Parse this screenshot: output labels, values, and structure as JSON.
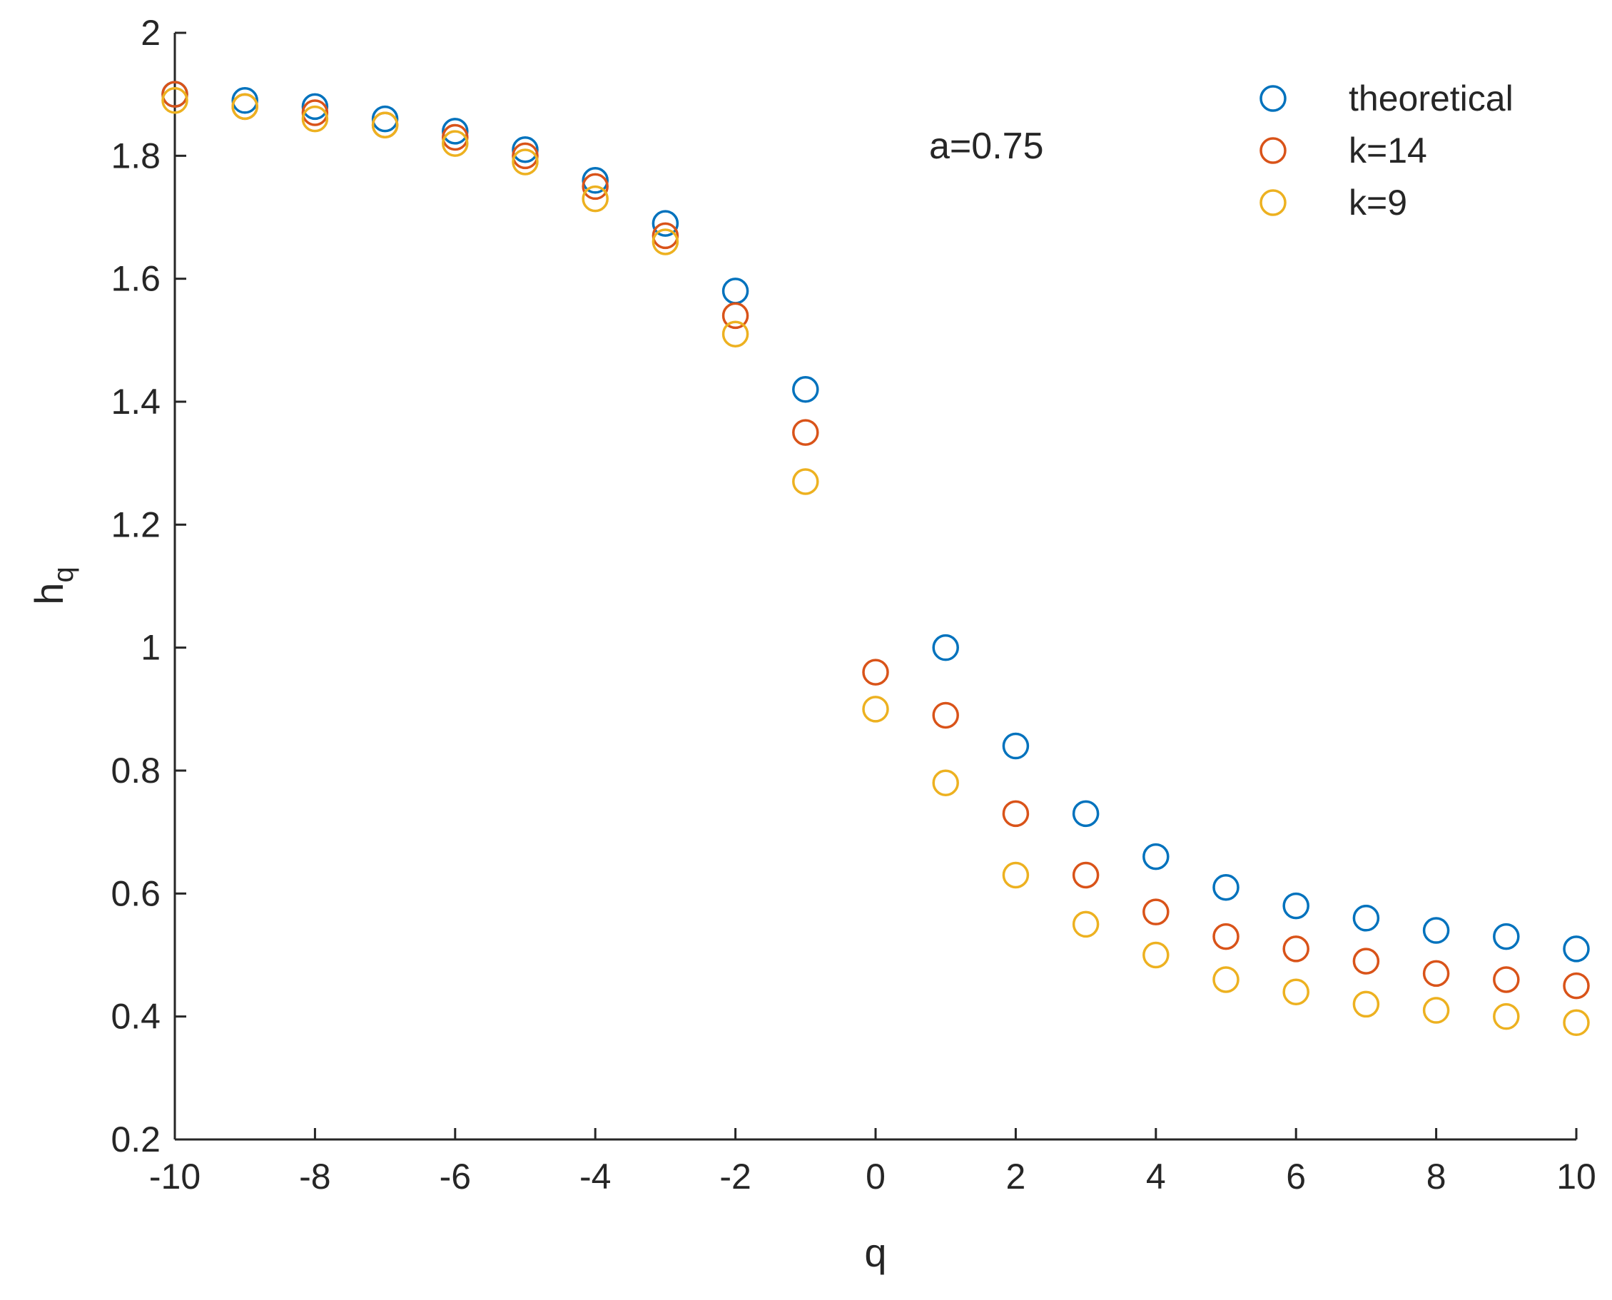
{
  "chart_data": {
    "type": "scatter",
    "title": "",
    "xlabel": "q",
    "ylabel": "h",
    "ylabel_subscript": "q",
    "xlim": [
      -10,
      10
    ],
    "ylim": [
      0.2,
      2
    ],
    "xticks": [
      -10,
      -8,
      -6,
      -4,
      -2,
      0,
      2,
      4,
      6,
      8,
      10
    ],
    "yticks": [
      0.2,
      0.4,
      0.6,
      0.8,
      1,
      1.2,
      1.4,
      1.6,
      1.8,
      2
    ],
    "xtick_labels": [
      "-10",
      "-8",
      "-6",
      "-4",
      "-2",
      "0",
      "2",
      "4",
      "6",
      "8",
      "10"
    ],
    "ytick_labels": [
      "0.2",
      "0.4",
      "0.6",
      "0.8",
      "1",
      "1.2",
      "1.4",
      "1.6",
      "1.8",
      "2"
    ],
    "grid": false,
    "annotation": "a=0.75",
    "legend_position": "top-right",
    "series": [
      {
        "name": "theoretical",
        "color": "#0072BD",
        "marker": "circle-open",
        "x": [
          -10,
          -9,
          -8,
          -7,
          -6,
          -5,
          -4,
          -3,
          -2,
          -1,
          1,
          2,
          3,
          4,
          5,
          6,
          7,
          8,
          9,
          10
        ],
        "values": [
          1.9,
          1.89,
          1.88,
          1.86,
          1.84,
          1.81,
          1.76,
          1.69,
          1.58,
          1.42,
          1.0,
          0.84,
          0.73,
          0.66,
          0.61,
          0.58,
          0.56,
          0.54,
          0.53,
          0.51
        ]
      },
      {
        "name": "k=14",
        "color": "#D95319",
        "marker": "circle-open",
        "x": [
          -10,
          -9,
          -8,
          -7,
          -6,
          -5,
          -4,
          -3,
          -2,
          -1,
          0,
          1,
          2,
          3,
          4,
          5,
          6,
          7,
          8,
          9,
          10
        ],
        "values": [
          1.9,
          1.88,
          1.87,
          1.85,
          1.83,
          1.8,
          1.75,
          1.67,
          1.54,
          1.35,
          0.96,
          0.89,
          0.73,
          0.63,
          0.57,
          0.53,
          0.51,
          0.49,
          0.47,
          0.46,
          0.45
        ]
      },
      {
        "name": "k=9",
        "color": "#EDB120",
        "marker": "circle-open",
        "x": [
          -10,
          -9,
          -8,
          -7,
          -6,
          -5,
          -4,
          -3,
          -2,
          -1,
          0,
          1,
          2,
          3,
          4,
          5,
          6,
          7,
          8,
          9,
          10
        ],
        "values": [
          1.89,
          1.88,
          1.86,
          1.85,
          1.82,
          1.79,
          1.73,
          1.66,
          1.51,
          1.27,
          0.9,
          0.78,
          0.63,
          0.55,
          0.5,
          0.46,
          0.44,
          0.42,
          0.41,
          0.4,
          0.39
        ]
      }
    ]
  }
}
